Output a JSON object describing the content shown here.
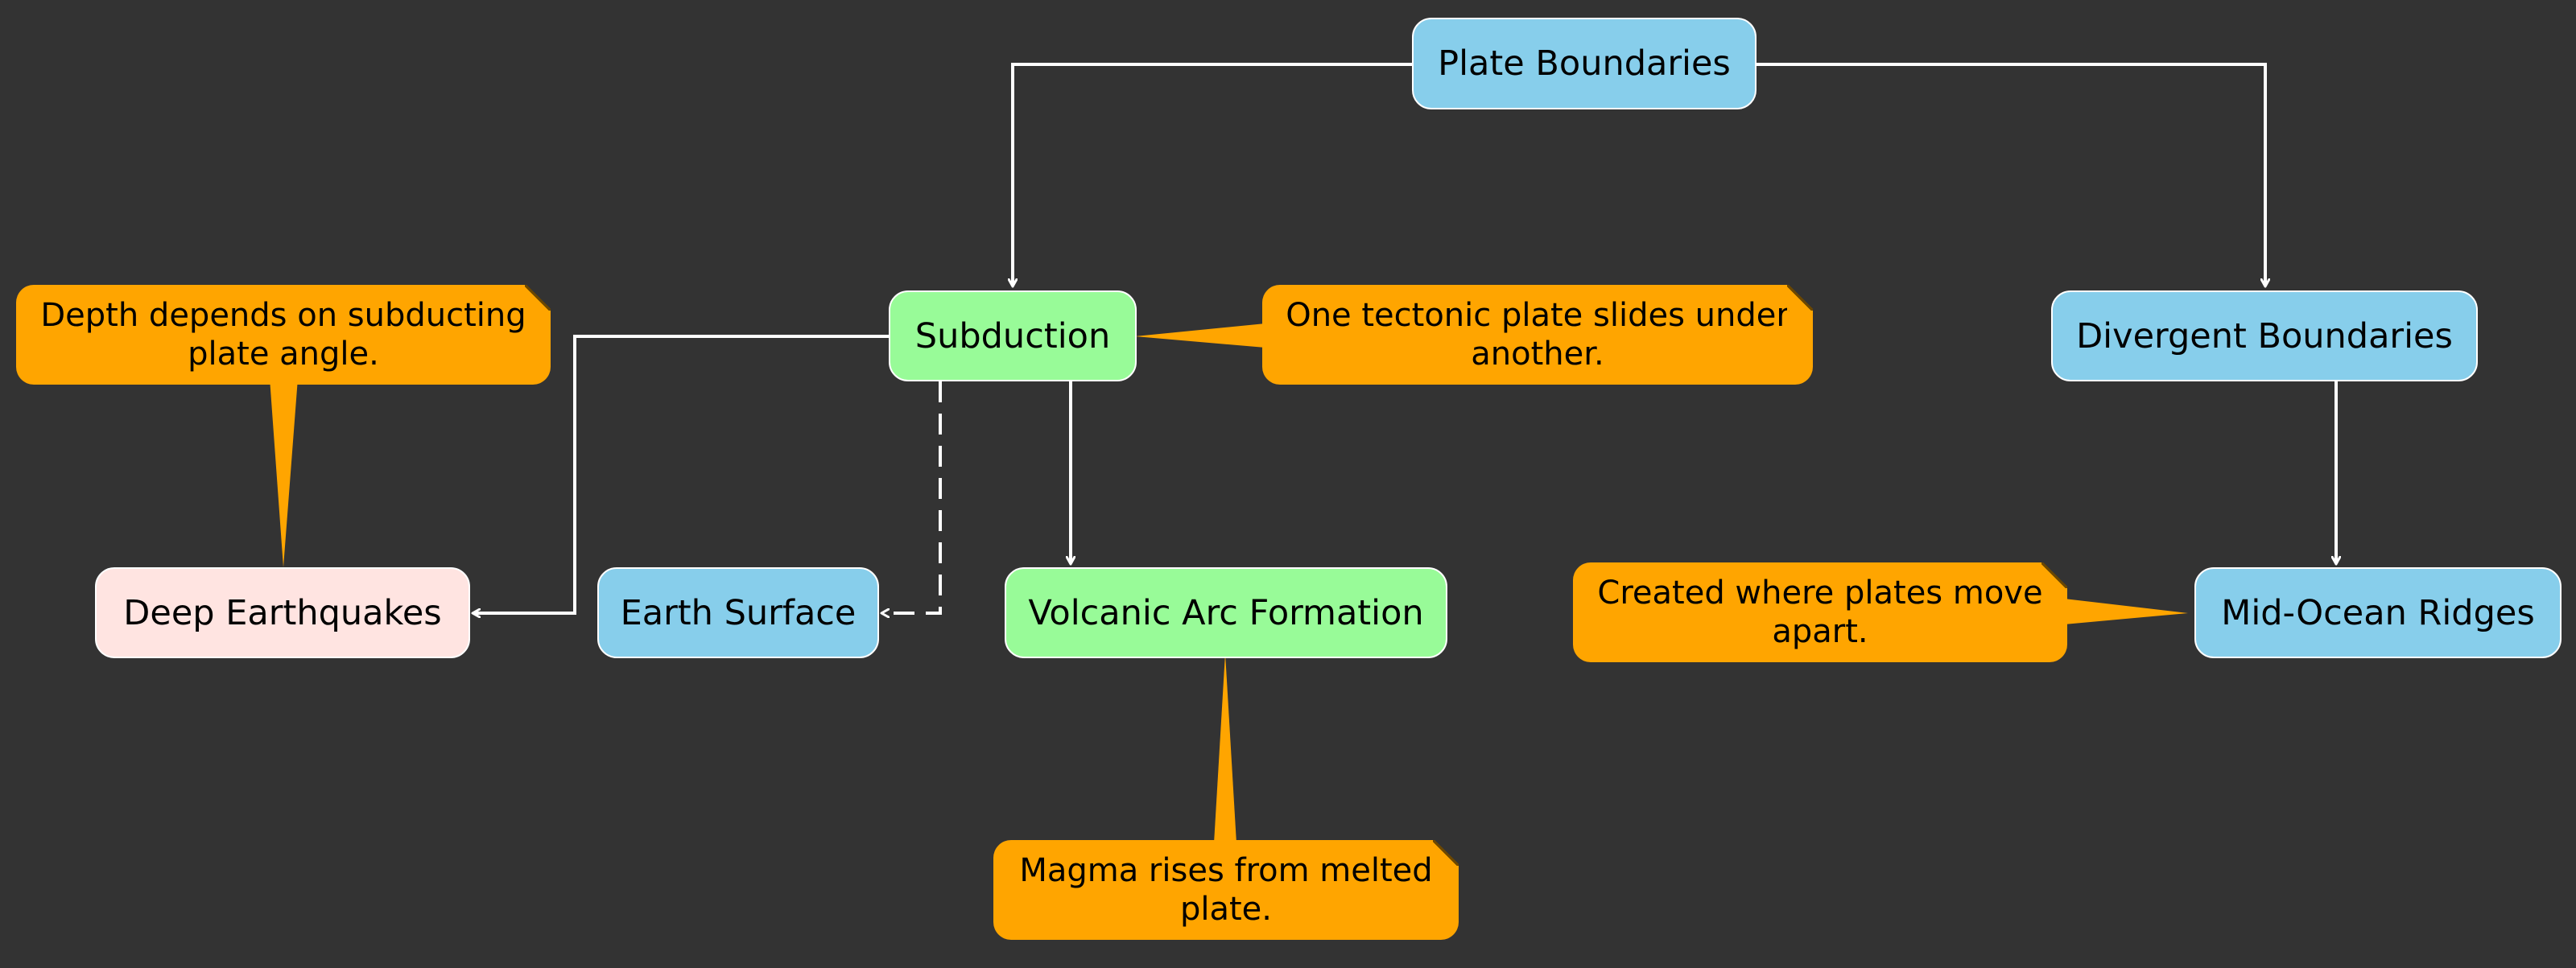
{
  "diagram": {
    "nodes": {
      "plate_boundaries": "Plate Boundaries",
      "subduction": "Subduction",
      "divergent_boundaries": "Divergent Boundaries",
      "deep_earthquakes": "Deep Earthquakes",
      "earth_surface": "Earth Surface",
      "volcanic_arc_formation": "Volcanic Arc Formation",
      "mid_ocean_ridges": "Mid-Ocean Ridges"
    },
    "notes": {
      "depth": "Depth depends on subducting plate angle.",
      "tectonic": "One tectonic plate slides under another.",
      "magma": "Magma rises from melted plate.",
      "created": "Created where plates move apart."
    },
    "edges": [
      {
        "from": "Plate Boundaries",
        "to": "Subduction",
        "style": "solid"
      },
      {
        "from": "Plate Boundaries",
        "to": "Divergent Boundaries",
        "style": "solid"
      },
      {
        "from": "Subduction",
        "to": "Deep Earthquakes",
        "style": "solid"
      },
      {
        "from": "Subduction",
        "to": "Earth Surface",
        "style": "dashed"
      },
      {
        "from": "Subduction",
        "to": "Volcanic Arc Formation",
        "style": "solid"
      },
      {
        "from": "Divergent Boundaries",
        "to": "Mid-Ocean Ridges",
        "style": "solid"
      }
    ],
    "colors": {
      "background": "#333333",
      "blue_node": "#87CEEB",
      "green_node": "#98FB98",
      "pink_node": "#FFE4E1",
      "note": "#FFA500",
      "edge": "#FFFFFF"
    }
  }
}
